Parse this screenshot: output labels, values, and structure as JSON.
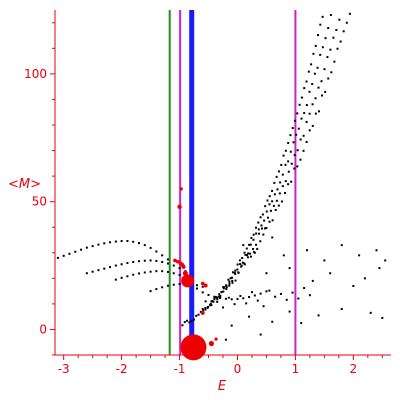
{
  "chart_data": {
    "type": "scatter",
    "xlabel": "E",
    "ylabel": "<M>",
    "xlim": [
      -3.15,
      2.65
    ],
    "ylim": [
      -10,
      125
    ],
    "x_ticks": [
      {
        "value": -3,
        "label": "-3"
      },
      {
        "value": -2,
        "label": "-2"
      },
      {
        "value": -1,
        "label": "-1"
      },
      {
        "value": 0,
        "label": "0"
      },
      {
        "value": 1,
        "label": "1"
      },
      {
        "value": 2,
        "label": "2"
      }
    ],
    "y_ticks": [
      {
        "value": 0,
        "label": "0"
      },
      {
        "value": 50,
        "label": "50"
      },
      {
        "value": 100,
        "label": "100"
      }
    ],
    "vertical_lines": [
      {
        "x": -1.17,
        "color": "#1f8f1f",
        "width": 2
      },
      {
        "x": -0.99,
        "color": "#cc22cc",
        "width": 2
      },
      {
        "x": -0.79,
        "color": "#1a1aff",
        "width": 5
      },
      {
        "x": 1.0,
        "color": "#cc22cc",
        "width": 2
      }
    ],
    "black_color": "#000000",
    "red_color": "#ee0000",
    "black_curves": [
      {
        "x_start": -0.95,
        "x_end": 2.58,
        "n": 90,
        "a": 0.005,
        "k": 1.7,
        "b": 1.0,
        "jitter": 1.2
      },
      {
        "x_start": -0.6,
        "x_end": 2.58,
        "n": 70,
        "a": 0.004,
        "k": 1.45,
        "b": 2.0,
        "jitter": 2.0
      },
      {
        "x_start": -0.45,
        "x_end": 2.58,
        "n": 60,
        "a": 0.004,
        "k": 1.2,
        "b": 3.0,
        "jitter": 2.5
      },
      {
        "x_start": -0.3,
        "x_end": 2.58,
        "n": 55,
        "a": 0.003,
        "k": 1.0,
        "b": 4.0,
        "jitter": 3.0
      }
    ],
    "black_points": [
      [
        -3.1,
        28
      ],
      [
        -3.0,
        28.8
      ],
      [
        -2.9,
        29.6
      ],
      [
        -2.8,
        30.4
      ],
      [
        -2.7,
        31.2
      ],
      [
        -2.6,
        32
      ],
      [
        -2.5,
        32.6
      ],
      [
        -2.4,
        33.2
      ],
      [
        -2.3,
        33.7
      ],
      [
        -2.2,
        34.1
      ],
      [
        -2.1,
        34.4
      ],
      [
        -2.0,
        34.6
      ],
      [
        -1.9,
        34.6
      ],
      [
        -1.8,
        34.3
      ],
      [
        -1.7,
        33.8
      ],
      [
        -1.6,
        33
      ],
      [
        -1.5,
        31.9
      ],
      [
        -1.4,
        30.5
      ],
      [
        -1.3,
        29
      ],
      [
        -1.2,
        27.4
      ],
      [
        -2.6,
        22
      ],
      [
        -2.5,
        22.6
      ],
      [
        -2.4,
        23.2
      ],
      [
        -2.3,
        23.8
      ],
      [
        -2.2,
        24.4
      ],
      [
        -2.1,
        25
      ],
      [
        -2.0,
        25.5
      ],
      [
        -1.9,
        26
      ],
      [
        -1.8,
        26.4
      ],
      [
        -1.7,
        26.7
      ],
      [
        -1.6,
        26.9
      ],
      [
        -1.5,
        27
      ],
      [
        -1.4,
        26.8
      ],
      [
        -1.3,
        26.4
      ],
      [
        -1.2,
        25.8
      ],
      [
        -1.1,
        25
      ],
      [
        -1.0,
        24
      ],
      [
        -0.9,
        22.8
      ],
      [
        -2.1,
        19.5
      ],
      [
        -2.0,
        20.2
      ],
      [
        -1.9,
        20.8
      ],
      [
        -1.8,
        21.4
      ],
      [
        -1.7,
        21.9
      ],
      [
        -1.6,
        22.3
      ],
      [
        -1.5,
        22.6
      ],
      [
        -1.4,
        22.8
      ],
      [
        -1.3,
        22.8
      ],
      [
        -1.2,
        22.5
      ],
      [
        -1.1,
        22
      ],
      [
        -1.0,
        21.3
      ],
      [
        -0.9,
        20.4
      ],
      [
        -0.8,
        19.4
      ],
      [
        -1.5,
        15
      ],
      [
        -1.4,
        15.8
      ],
      [
        -1.3,
        16.5
      ],
      [
        -1.2,
        17.1
      ],
      [
        -1.1,
        17.5
      ],
      [
        -1.0,
        17.8
      ],
      [
        -0.9,
        17.9
      ],
      [
        -0.8,
        17.7
      ],
      [
        -0.7,
        17.3
      ],
      [
        -0.6,
        16.7
      ],
      [
        -0.7,
        16
      ],
      [
        -0.6,
        14.5
      ],
      [
        -0.5,
        13.5
      ],
      [
        -0.4,
        12.8
      ],
      [
        -0.3,
        12.3
      ],
      [
        -0.2,
        12
      ],
      [
        -0.1,
        11.8
      ],
      [
        0.0,
        11.9
      ],
      [
        0.1,
        12.2
      ],
      [
        0.2,
        12.7
      ],
      [
        0.3,
        13.3
      ],
      [
        0.4,
        14
      ],
      [
        0.5,
        14.9
      ],
      [
        -0.55,
        11
      ],
      [
        -0.45,
        9.5
      ],
      [
        -0.35,
        10.8
      ],
      [
        -0.25,
        8.6
      ],
      [
        -0.15,
        12.4
      ],
      [
        -0.05,
        9.9
      ],
      [
        0.05,
        13.1
      ],
      [
        0.15,
        10.2
      ],
      [
        0.25,
        14.6
      ],
      [
        0.35,
        11.3
      ],
      [
        0.45,
        9.1
      ],
      [
        0.55,
        15.2
      ],
      [
        0.65,
        12.8
      ],
      [
        0.75,
        13.9
      ],
      [
        0.85,
        11.6
      ],
      [
        0.95,
        14.4
      ],
      [
        1.05,
        12.1
      ],
      [
        1.15,
        16.2
      ],
      [
        1.25,
        13.4
      ],
      [
        0.2,
        5
      ],
      [
        0.6,
        3
      ],
      [
        0.9,
        7
      ],
      [
        1.4,
        5.5
      ],
      [
        1.8,
        8
      ],
      [
        2.3,
        6.5
      ],
      [
        2.5,
        4.5
      ],
      [
        1.1,
        2.5
      ],
      [
        -0.1,
        1.5
      ],
      [
        0.4,
        -2
      ],
      [
        -0.2,
        -4
      ],
      [
        0.1,
        33
      ],
      [
        0.3,
        30
      ],
      [
        0.6,
        36
      ],
      [
        0.8,
        29
      ],
      [
        1.2,
        31
      ],
      [
        1.5,
        27
      ],
      [
        1.8,
        33
      ],
      [
        2.1,
        29
      ],
      [
        2.4,
        31
      ],
      [
        2.55,
        27
      ],
      [
        0.9,
        24
      ],
      [
        1.6,
        22
      ],
      [
        2.2,
        20
      ],
      [
        0.5,
        22
      ],
      [
        1.3,
        19
      ],
      [
        2.0,
        17
      ],
      [
        2.45,
        24
      ]
    ],
    "red_points": [
      [
        -1.08,
        27,
        1.8
      ],
      [
        -1.03,
        26.5,
        1.8
      ],
      [
        -0.98,
        25.8,
        2
      ],
      [
        -0.95,
        25.2,
        2
      ],
      [
        -0.93,
        24.5,
        2
      ],
      [
        -0.9,
        22,
        2.5
      ],
      [
        -0.88,
        20.5,
        3
      ],
      [
        -0.86,
        19,
        6.5
      ],
      [
        -0.6,
        18,
        1.8
      ],
      [
        -0.55,
        17.2,
        2
      ],
      [
        -1.0,
        48,
        2.2
      ],
      [
        -0.97,
        55,
        1.6
      ],
      [
        -0.76,
        -7,
        13
      ],
      [
        -0.45,
        -5.5,
        2.6
      ],
      [
        -0.37,
        -3.8,
        1.6
      ],
      [
        -0.6,
        6.5,
        2
      ]
    ]
  }
}
